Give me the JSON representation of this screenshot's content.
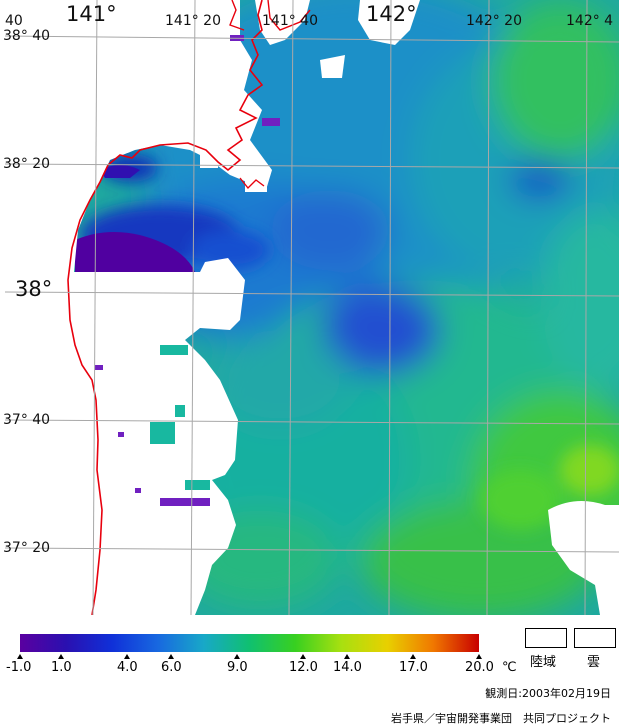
{
  "map": {
    "longitude_labels": [
      "141°",
      "141° 20",
      "141° 40",
      "142°",
      "142° 20",
      "142° 4"
    ],
    "latitude_labels": [
      "38° 40",
      "38° 20",
      "38°",
      "37° 40",
      "37° 20"
    ],
    "corner_label": "40"
  },
  "colors": {
    "land": "#ffffff",
    "coastline": "#e8000d",
    "grid": "#aaaaaa",
    "colorbar_stops": [
      "#5a00a0",
      "#2a10b0",
      "#1030d8",
      "#1868e0",
      "#18a8c8",
      "#10c070",
      "#38d020",
      "#a8e010",
      "#e8d000",
      "#f07800",
      "#c80000"
    ]
  },
  "legend": {
    "ticks": [
      "-1.0",
      "1.0",
      "4.0",
      "6.0",
      "9.0",
      "12.0",
      "14.0",
      "17.0",
      "20.0"
    ],
    "unit": "℃",
    "land_label": "陸域",
    "cloud_label": "雲"
  },
  "footer": {
    "observation_date": "観測日:2003年02月19日",
    "credit": "岩手県／宇宙開発事業団　共同プロジェクト"
  }
}
